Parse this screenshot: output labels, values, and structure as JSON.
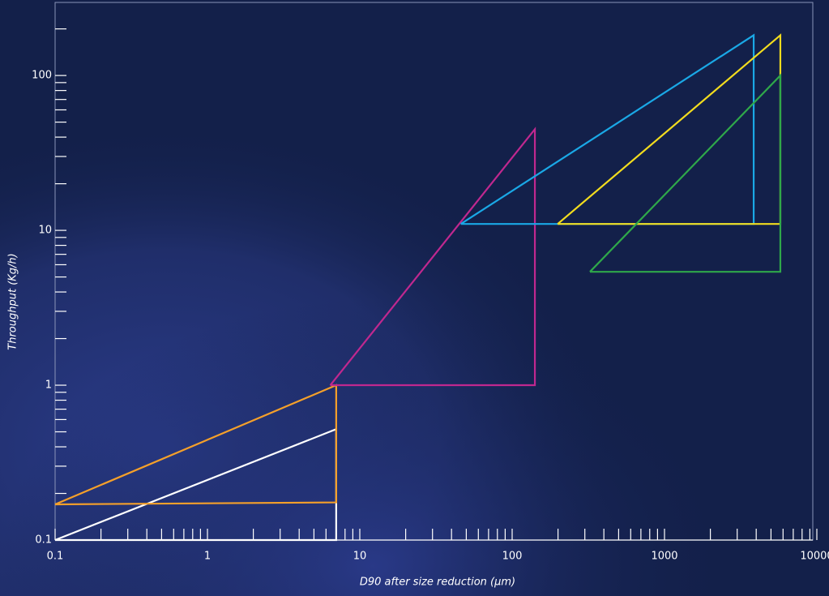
{
  "chart_data": {
    "type": "polygon",
    "xlabel": "D90 after size reduction (μm)",
    "ylabel": "Throughput (Kg/h)",
    "log_x": true,
    "log_y": true,
    "xlim": [
      0.1,
      10000
    ],
    "ylim": [
      0.1,
      300
    ],
    "xticks": [
      0.1,
      1,
      10,
      100,
      1000,
      10000
    ],
    "yticks": [
      0.1,
      1,
      10,
      100
    ],
    "x_minor_ticks": [
      0.2,
      0.3,
      0.4,
      0.5,
      0.6,
      0.7,
      0.8,
      0.9,
      2,
      3,
      4,
      5,
      6,
      7,
      8,
      9,
      20,
      30,
      40,
      50,
      60,
      70,
      80,
      90,
      200,
      300,
      400,
      500,
      600,
      700,
      800,
      900,
      2000,
      3000,
      4000,
      5000,
      6000,
      7000,
      8000,
      9000
    ],
    "y_minor_ticks": [
      0.2,
      0.3,
      0.4,
      0.5,
      0.6,
      0.7,
      0.8,
      0.9,
      2,
      3,
      4,
      5,
      6,
      7,
      8,
      9,
      20,
      30,
      40,
      50,
      60,
      70,
      80,
      90,
      200
    ],
    "series": [
      {
        "color": "#ffffff",
        "x": [
          0.1,
          7,
          7,
          0.1
        ],
        "values": [
          0.1,
          0.52,
          0.1,
          0.1
        ]
      },
      {
        "color": "#f5a02a",
        "x": [
          0.1,
          7,
          7,
          0.1
        ],
        "values": [
          0.17,
          1,
          0.175,
          0.17
        ]
      },
      {
        "color": "#c0288f",
        "x": [
          6.4,
          141,
          141,
          6.4
        ],
        "values": [
          1,
          45,
          1,
          1
        ]
      },
      {
        "color": "#1aa8e6",
        "x": [
          46,
          3850,
          3850,
          46
        ],
        "values": [
          11,
          182,
          11,
          11
        ]
      },
      {
        "color": "#f2dc1e",
        "x": [
          199,
          5760,
          5760,
          199
        ],
        "values": [
          11,
          182,
          11,
          11
        ]
      },
      {
        "color": "#2fa84a",
        "x": [
          324,
          5760,
          5760,
          324
        ],
        "values": [
          5.4,
          100,
          5.4,
          5.4
        ]
      }
    ]
  }
}
